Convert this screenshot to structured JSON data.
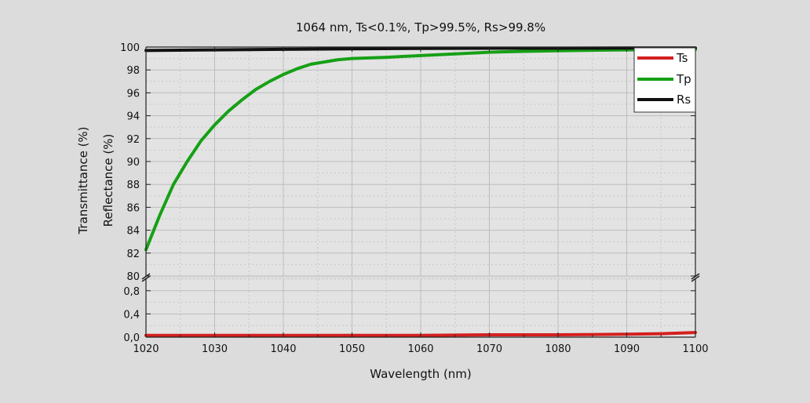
{
  "chart_data": {
    "type": "line",
    "title": "1064 nm, Ts<0.1%, Tp>99.5%, Rs>99.8%",
    "xlabel": "Wavelength (nm)",
    "ylabel_line1": "Transmittance (%)",
    "ylabel_line2": "Reflectance (%)",
    "xlim": [
      1020,
      1100
    ],
    "x_ticks": [
      "1020",
      "1030",
      "1040",
      "1050",
      "1060",
      "1070",
      "1080",
      "1090",
      "1100"
    ],
    "y_axis_break": true,
    "upper_ylim": [
      80,
      100
    ],
    "upper_y_ticks": [
      "80",
      "82",
      "84",
      "86",
      "88",
      "90",
      "92",
      "94",
      "96",
      "98",
      "100"
    ],
    "lower_ylim": [
      0,
      1
    ],
    "lower_y_ticks": [
      "0,0",
      "0,4",
      "0,8"
    ],
    "grid": true,
    "legend_position": "top-right",
    "series": [
      {
        "name": "Ts",
        "color": "#d42020",
        "panel": "lower",
        "x": [
          1020,
          1030,
          1040,
          1050,
          1060,
          1070,
          1080,
          1090,
          1095,
          1100
        ],
        "y": [
          0.03,
          0.03,
          0.03,
          0.03,
          0.03,
          0.04,
          0.04,
          0.05,
          0.06,
          0.08
        ]
      },
      {
        "name": "Tp",
        "color": "#16a016",
        "panel": "upper",
        "x": [
          1020,
          1022,
          1024,
          1026,
          1028,
          1030,
          1032,
          1034,
          1036,
          1038,
          1040,
          1042,
          1044,
          1046,
          1048,
          1050,
          1055,
          1060,
          1065,
          1070,
          1075,
          1080,
          1085,
          1090,
          1100
        ],
        "y": [
          82.3,
          85.3,
          88.0,
          90.0,
          91.8,
          93.2,
          94.4,
          95.4,
          96.3,
          97.0,
          97.6,
          98.1,
          98.5,
          98.7,
          98.9,
          99.0,
          99.1,
          99.25,
          99.4,
          99.55,
          99.62,
          99.68,
          99.72,
          99.75,
          99.78
        ]
      },
      {
        "name": "Rs",
        "color": "#111111",
        "panel": "upper",
        "x": [
          1020,
          1030,
          1040,
          1050,
          1060,
          1070,
          1080,
          1090,
          1100
        ],
        "y": [
          99.7,
          99.75,
          99.8,
          99.85,
          99.88,
          99.9,
          99.9,
          99.92,
          99.92
        ]
      }
    ]
  }
}
